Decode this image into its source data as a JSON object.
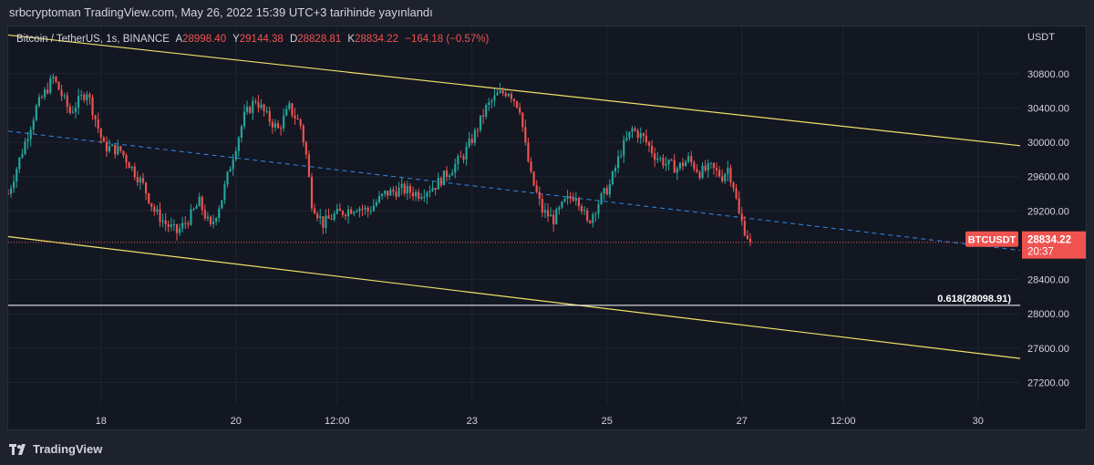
{
  "header": {
    "published_text": "srbcryptoman TradingView.com, May 26, 2022 15:39 UTC+3 tarihinde yayınlandı"
  },
  "legend": {
    "symbol": "Bitcoin / TetherUS, 1s, BINANCE",
    "open_label": "A",
    "open": "28998.40",
    "high_label": "Y",
    "high": "29144.38",
    "low_label": "D",
    "low": "28828.81",
    "close_label": "K",
    "close": "28834.22",
    "change": "−164.18 (−0.57%)"
  },
  "footer": {
    "brand": "TradingView"
  },
  "colors": {
    "up": "#26a69a",
    "down": "#ef5350",
    "channel": "#f0e06a",
    "midline": "#2f7fd6",
    "fib": "#ffffff"
  },
  "chart_data": {
    "type": "candlestick",
    "symbol": "BTCUSDT",
    "interval": "1h",
    "y_unit": "USDT",
    "ylim": [
      26950,
      31350
    ],
    "y_ticks": [
      "30800.00",
      "30400.00",
      "30000.00",
      "29600.00",
      "29200.00",
      "28400.00",
      "28000.00",
      "27600.00",
      "27200.00"
    ],
    "x_ticks": [
      "18",
      "20",
      "12:00",
      "23",
      "25",
      "27",
      "12:00",
      "30"
    ],
    "x_tick_positions_hours": [
      33,
      81,
      117,
      165,
      213,
      261,
      297,
      345
    ],
    "last_price": {
      "label": "BTCUSDT",
      "value": 28834.22,
      "value_text": "28834.22",
      "countdown": "20:37"
    },
    "fib_level": {
      "label": "0.618(28098.91)",
      "value": 28098.91
    },
    "channel_upper": {
      "start": [
        0,
        31250
      ],
      "end": [
        360,
        29960
      ]
    },
    "channel_lower": {
      "start": [
        0,
        28900
      ],
      "end": [
        360,
        27480
      ]
    },
    "channel_mid": {
      "start": [
        0,
        30130
      ],
      "end": [
        360,
        28740
      ]
    },
    "price_path": [
      [
        0,
        29400
      ],
      [
        10,
        30400
      ],
      [
        16,
        30750
      ],
      [
        22,
        30350
      ],
      [
        28,
        30600
      ],
      [
        34,
        29950
      ],
      [
        40,
        29900
      ],
      [
        44,
        29700
      ],
      [
        48,
        29500
      ],
      [
        52,
        29200
      ],
      [
        56,
        29050
      ],
      [
        60,
        28950
      ],
      [
        64,
        29100
      ],
      [
        68,
        29300
      ],
      [
        72,
        29000
      ],
      [
        76,
        29350
      ],
      [
        80,
        29850
      ],
      [
        84,
        30300
      ],
      [
        88,
        30500
      ],
      [
        92,
        30300
      ],
      [
        96,
        30150
      ],
      [
        100,
        30400
      ],
      [
        104,
        30200
      ],
      [
        106,
        29850
      ],
      [
        108,
        29300
      ],
      [
        112,
        29050
      ],
      [
        116,
        29150
      ],
      [
        120,
        29200
      ],
      [
        124,
        29250
      ],
      [
        128,
        29200
      ],
      [
        134,
        29400
      ],
      [
        140,
        29450
      ],
      [
        146,
        29400
      ],
      [
        152,
        29500
      ],
      [
        158,
        29700
      ],
      [
        162,
        29850
      ],
      [
        166,
        30100
      ],
      [
        170,
        30400
      ],
      [
        174,
        30550
      ],
      [
        178,
        30600
      ],
      [
        182,
        30400
      ],
      [
        184,
        29950
      ],
      [
        186,
        29600
      ],
      [
        190,
        29200
      ],
      [
        194,
        29100
      ],
      [
        198,
        29300
      ],
      [
        202,
        29400
      ],
      [
        204,
        29250
      ],
      [
        206,
        29050
      ],
      [
        210,
        29300
      ],
      [
        214,
        29500
      ],
      [
        218,
        29900
      ],
      [
        222,
        30150
      ],
      [
        226,
        30050
      ],
      [
        230,
        29850
      ],
      [
        234,
        29750
      ],
      [
        238,
        29700
      ],
      [
        242,
        29800
      ],
      [
        246,
        29650
      ],
      [
        250,
        29700
      ],
      [
        254,
        29600
      ],
      [
        256,
        29700
      ],
      [
        258,
        29500
      ],
      [
        260,
        29150
      ],
      [
        262,
        28980
      ],
      [
        264,
        28834
      ]
    ]
  }
}
